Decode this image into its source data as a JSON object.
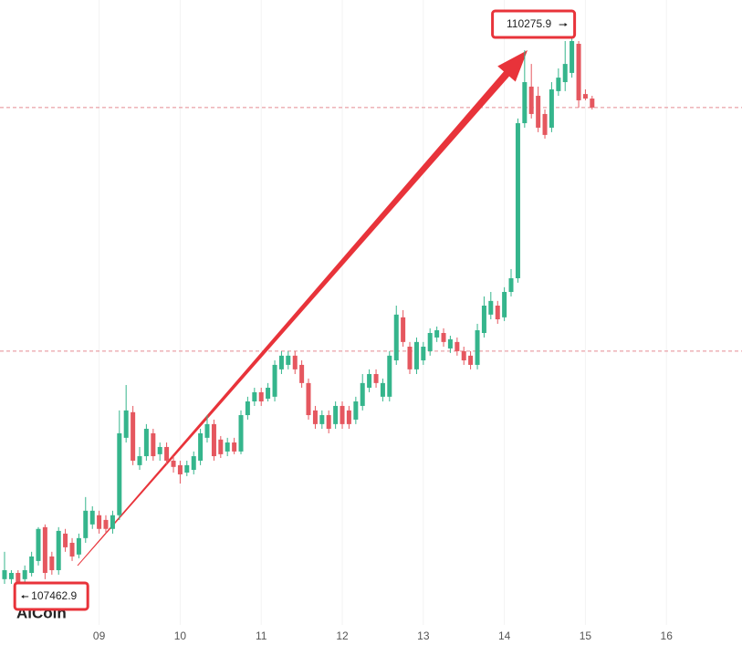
{
  "chart_data": {
    "type": "candlestick",
    "x": [
      7.833,
      7.917,
      8,
      8.083,
      8.167,
      8.25,
      8.333,
      8.417,
      8.5,
      8.583,
      8.667,
      8.75,
      8.833,
      8.917,
      9,
      9.083,
      9.167,
      9.25,
      9.333,
      9.417,
      9.5,
      9.583,
      9.667,
      9.75,
      9.833,
      9.917,
      10,
      10.083,
      10.167,
      10.25,
      10.333,
      10.417,
      10.5,
      10.583,
      10.667,
      10.75,
      10.833,
      10.917,
      11,
      11.083,
      11.167,
      11.25,
      11.333,
      11.417,
      11.5,
      11.583,
      11.667,
      11.75,
      11.833,
      11.917,
      12,
      12.083,
      12.167,
      12.25,
      12.333,
      12.417,
      12.5,
      12.583,
      12.667,
      12.75,
      12.833,
      12.917,
      13,
      13.083,
      13.167,
      13.25,
      13.333,
      13.417,
      13.5,
      13.583,
      13.667,
      13.75,
      13.833,
      13.917,
      14,
      14.083,
      14.167,
      14.25,
      14.333,
      14.417,
      14.5,
      14.583,
      14.667,
      14.75,
      14.833,
      14.917,
      15,
      15.083
    ],
    "open": [
      107510,
      107510,
      107542,
      107510,
      107542,
      107603,
      107776,
      107626,
      107556,
      107743,
      107696,
      107636,
      107720,
      107790,
      107837,
      107813,
      107767,
      107837,
      108233,
      108364,
      108093,
      108139,
      108256,
      108149,
      108186,
      108116,
      108093,
      108055,
      108069,
      108116,
      108233,
      108303,
      108224,
      108163,
      108209,
      108163,
      108349,
      108419,
      108466,
      108433,
      108443,
      108583,
      108606,
      108653,
      108606,
      108513,
      108373,
      108303,
      108349,
      108303,
      108396,
      108373,
      108326,
      108396,
      108489,
      108559,
      108443,
      108443,
      108629,
      108849,
      108699,
      108583,
      108629,
      108676,
      108746,
      108769,
      108690,
      108723,
      108676,
      108653,
      108606,
      108769,
      108863,
      108909,
      108849,
      108979,
      109049,
      109842,
      110029,
      109982,
      109889,
      109819,
      110006,
      110052,
      110099,
      110248,
      109991,
      109968
    ],
    "high": [
      107650,
      107556,
      107556,
      107580,
      107650,
      107776,
      107790,
      107650,
      107776,
      107767,
      107720,
      107743,
      107930,
      107883,
      107860,
      107837,
      107860,
      108373,
      108503,
      108396,
      108186,
      108303,
      108279,
      108209,
      108209,
      108139,
      108116,
      108116,
      108163,
      108279,
      108349,
      108326,
      108242,
      108233,
      108233,
      108373,
      108443,
      108489,
      108489,
      108513,
      108629,
      108676,
      108676,
      108676,
      108629,
      108536,
      108396,
      108373,
      108373,
      108419,
      108419,
      108396,
      108443,
      108559,
      108583,
      108583,
      108536,
      108676,
      108909,
      108886,
      108723,
      108746,
      108723,
      108793,
      108802,
      108793,
      108755,
      108746,
      108699,
      108676,
      108816,
      108956,
      108979,
      108933,
      109003,
      109096,
      109866,
      110215,
      110145,
      110029,
      109912,
      110052,
      110122,
      110262,
      110275.9,
      110262,
      110015,
      109982
    ],
    "low": [
      107486,
      107486,
      107475,
      107462.9,
      107524,
      107580,
      107510,
      107533,
      107533,
      107650,
      107603,
      107617,
      107696,
      107767,
      107743,
      107743,
      107743,
      107813,
      108209,
      108093,
      108069,
      108116,
      108116,
      108116,
      108093,
      108055,
      107999,
      108037,
      108046,
      108093,
      108209,
      108116,
      108130,
      108139,
      108149,
      108149,
      108326,
      108396,
      108396,
      108419,
      108419,
      108559,
      108583,
      108559,
      108489,
      108326,
      108279,
      108279,
      108256,
      108279,
      108279,
      108279,
      108303,
      108373,
      108466,
      108489,
      108419,
      108419,
      108606,
      108699,
      108559,
      108559,
      108606,
      108653,
      108723,
      108699,
      108667,
      108653,
      108606,
      108583,
      108583,
      108746,
      108839,
      108816,
      108830,
      108956,
      109026,
      109819,
      109866,
      109796,
      109763,
      109796,
      109982,
      110006,
      110075,
      109922,
      109959,
      109912
    ],
    "close": [
      107556,
      107542,
      107486,
      107556,
      107626,
      107767,
      107542,
      107556,
      107757,
      107673,
      107626,
      107720,
      107860,
      107860,
      107767,
      107767,
      107837,
      108256,
      108373,
      108116,
      108139,
      108279,
      108139,
      108186,
      108116,
      108084,
      108046,
      108093,
      108139,
      108256,
      108303,
      108139,
      108149,
      108209,
      108163,
      108349,
      108419,
      108466,
      108419,
      108489,
      108606,
      108653,
      108653,
      108583,
      108513,
      108349,
      108303,
      108349,
      108279,
      108396,
      108303,
      108303,
      108419,
      108513,
      108559,
      108513,
      108513,
      108653,
      108863,
      108723,
      108583,
      108723,
      108699,
      108769,
      108783,
      108723,
      108737,
      108676,
      108629,
      108606,
      108783,
      108909,
      108933,
      108839,
      108979,
      109049,
      109842,
      110052,
      109889,
      109819,
      109782,
      110015,
      110075,
      110145,
      110262,
      109959,
      109968,
      109922
    ],
    "up_color": "#35b58c",
    "down_color": "#e5575f",
    "xlim": [
      7.777,
      16.932
    ],
    "xticks": [
      {
        "value": 9,
        "label": "09"
      },
      10,
      11,
      12,
      13,
      14,
      15,
      16
    ],
    "ylim": [
      107276,
      110472
    ],
    "grid": true,
    "hlines": [
      109922,
      108676
    ],
    "hline_color": "#e58a92",
    "annotation_color": "#e8333a",
    "watermark": "AiCoin"
  }
}
